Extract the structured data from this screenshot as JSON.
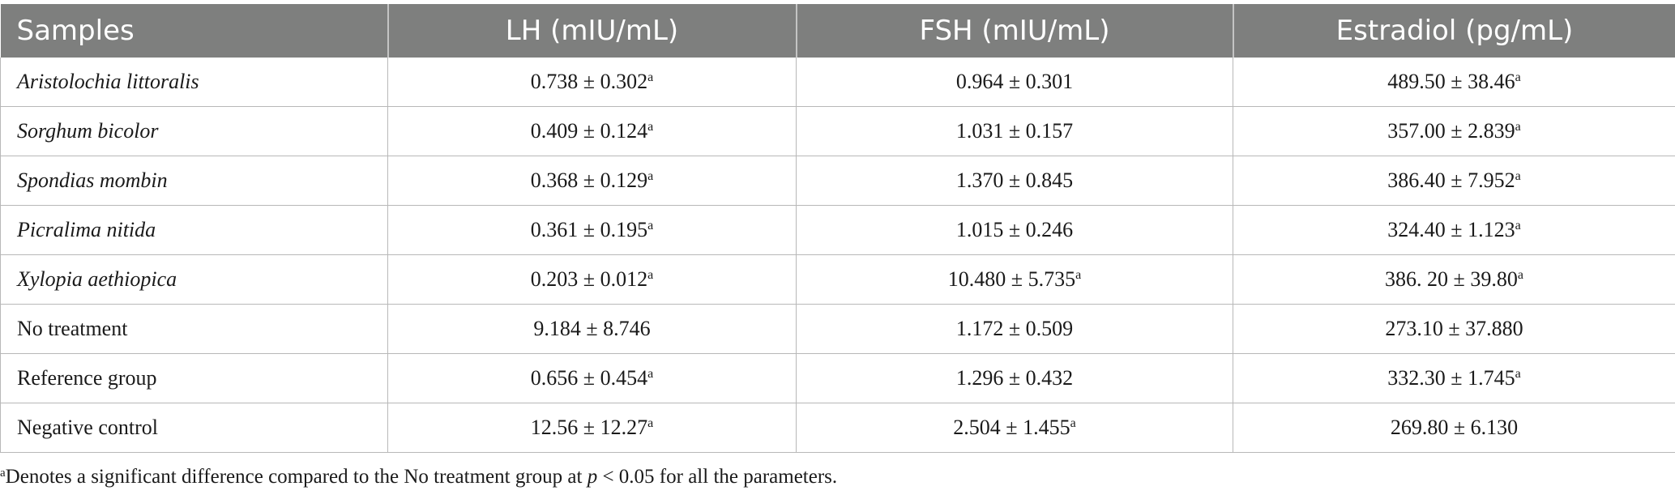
{
  "header": {
    "samples": "Samples",
    "lh": "LH (mIU/mL)",
    "fsh": "FSH (mIU/mL)",
    "estradiol": "Estradiol (pg/mL)"
  },
  "rows": [
    {
      "sample": "Aristolochia littoralis",
      "lh": "0.738 ± 0.302",
      "lh_sup": "a",
      "fsh": "0.964 ± 0.301",
      "fsh_sup": "",
      "e2": "489.50 ± 38.46",
      "e2_sup": "a"
    },
    {
      "sample": "Sorghum bicolor",
      "lh": "0.409 ± 0.124",
      "lh_sup": "a",
      "fsh": "1.031 ± 0.157",
      "fsh_sup": "",
      "e2": "357.00 ± 2.839",
      "e2_sup": "a"
    },
    {
      "sample": "Spondias mombin",
      "lh": "0.368 ± 0.129",
      "lh_sup": "a",
      "fsh": "1.370 ± 0.845",
      "fsh_sup": "",
      "e2": "386.40 ± 7.952",
      "e2_sup": "a"
    },
    {
      "sample": "Picralima nitida",
      "lh": "0.361 ± 0.195",
      "lh_sup": "a",
      "fsh": "1.015 ± 0.246",
      "fsh_sup": "",
      "e2": "324.40 ± 1.123",
      "e2_sup": "a"
    },
    {
      "sample": "Xylopia aethiopica",
      "lh": "0.203 ± 0.012",
      "lh_sup": "a",
      "fsh": "10.480 ± 5.735",
      "fsh_sup": "a",
      "e2": "386. 20 ± 39.80",
      "e2_sup": "a"
    },
    {
      "sample": "No treatment",
      "lh": "9.184 ± 8.746",
      "lh_sup": "",
      "fsh": "1.172 ± 0.509",
      "fsh_sup": "",
      "e2": "273.10 ± 37.880",
      "e2_sup": ""
    },
    {
      "sample": "Reference group",
      "lh": "0.656 ± 0.454",
      "lh_sup": "a",
      "fsh": "1.296 ± 0.432",
      "fsh_sup": "",
      "e2": "332.30 ± 1.745",
      "e2_sup": "a"
    },
    {
      "sample": "Negative control",
      "lh": "12.56 ± 12.27",
      "lh_sup": "a",
      "fsh": "2.504 ± 1.455",
      "fsh_sup": "a",
      "e2": "269.80 ± 6.130",
      "e2_sup": ""
    }
  ],
  "footnote": {
    "marker": "a",
    "text_before": "Denotes a significant difference compared to the No treatment group at ",
    "p": "p",
    "text_after": " < 0.05 for all the parameters."
  }
}
